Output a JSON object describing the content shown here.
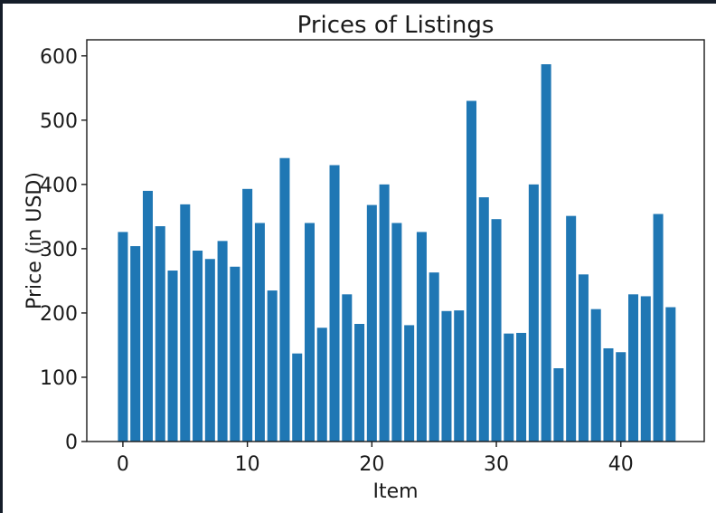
{
  "window": {
    "frame_color": "#151d29",
    "figure_background": "#ffffff"
  },
  "chart_data": {
    "type": "bar",
    "title": "Prices of Listings",
    "xlabel": "Item",
    "ylabel": "Price (in USD)",
    "categories": [
      0,
      1,
      2,
      3,
      4,
      5,
      6,
      7,
      8,
      9,
      10,
      11,
      12,
      13,
      14,
      15,
      16,
      17,
      18,
      19,
      20,
      21,
      22,
      23,
      24,
      25,
      26,
      27,
      28,
      29,
      30,
      31,
      32,
      33,
      34,
      35,
      36,
      37,
      38,
      39,
      40,
      41,
      42,
      43,
      44
    ],
    "values": [
      326,
      304,
      390,
      335,
      266,
      369,
      297,
      284,
      312,
      272,
      393,
      340,
      235,
      441,
      137,
      340,
      177,
      430,
      229,
      183,
      368,
      400,
      340,
      181,
      326,
      263,
      203,
      204,
      530,
      380,
      346,
      168,
      169,
      400,
      587,
      114,
      351,
      260,
      206,
      145,
      139,
      229,
      226,
      354,
      209
    ],
    "xticks": [
      0,
      10,
      20,
      30,
      40
    ],
    "yticks": [
      0,
      100,
      200,
      300,
      400,
      500,
      600
    ],
    "xlim": [
      -2.9,
      46.7
    ],
    "ylim": [
      0,
      625
    ],
    "bar_color": "#1f77b4",
    "bar_width": 0.8,
    "grid": false,
    "legend": null,
    "text_color": "#1a1a1a"
  }
}
